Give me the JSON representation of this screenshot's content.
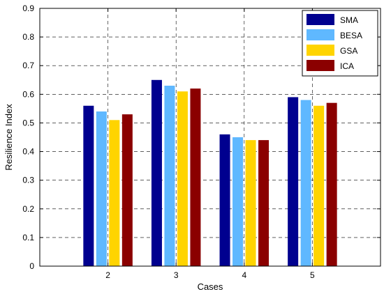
{
  "chart_data": {
    "type": "bar",
    "title": "",
    "xlabel": "Cases",
    "ylabel": "Resilience Index",
    "categories": [
      "2",
      "3",
      "4",
      "5"
    ],
    "ylim": [
      0,
      0.9
    ],
    "yticks": [
      "0",
      "0.1",
      "0.2",
      "0.3",
      "0.4",
      "0.5",
      "0.6",
      "0.7",
      "0.8",
      "0.9"
    ],
    "grid": true,
    "legend_position": "top-right",
    "series": [
      {
        "name": "SMA",
        "color": "#00008F",
        "values": [
          0.56,
          0.65,
          0.46,
          0.59
        ]
      },
      {
        "name": "BESA",
        "color": "#5FB8FF",
        "values": [
          0.54,
          0.63,
          0.45,
          0.58
        ]
      },
      {
        "name": "GSA",
        "color": "#FFD400",
        "values": [
          0.51,
          0.61,
          0.44,
          0.56
        ]
      },
      {
        "name": "ICA",
        "color": "#8B0000",
        "values": [
          0.53,
          0.62,
          0.44,
          0.57
        ]
      }
    ]
  }
}
